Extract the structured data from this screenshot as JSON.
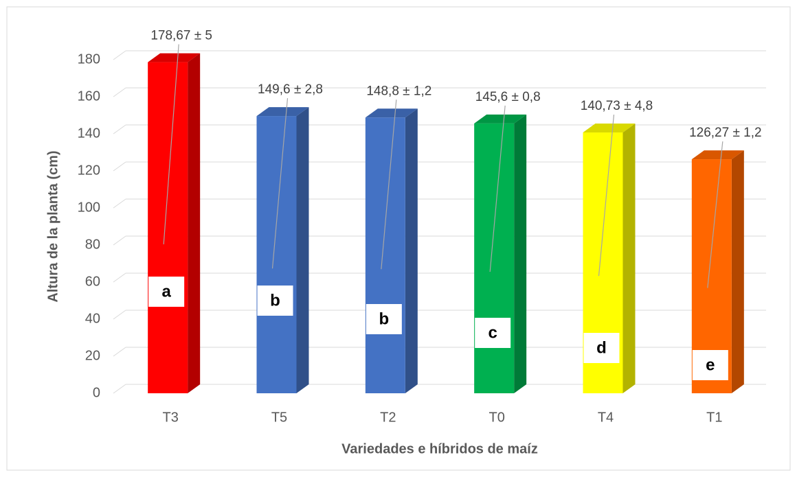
{
  "chart_data": {
    "type": "bar3d",
    "x_label": "Variedades e híbridos de maíz",
    "y_label": "Altura de la planta (cm)",
    "categories": [
      "T3",
      "T5",
      "T2",
      "T0",
      "T4",
      "T1"
    ],
    "values": [
      178.67,
      149.6,
      148.8,
      145.6,
      140.73,
      126.27
    ],
    "value_labels": [
      "178,67 ± 5",
      "149,6 ± 2,8",
      "148,8  ± 1,2",
      "145,6 ± 0,8",
      "140,73 ± 4,8",
      "126,27 ± 1,2"
    ],
    "group_letters": [
      "a",
      "b",
      "b",
      "c",
      "d",
      "e"
    ],
    "colors": [
      "#ff0000",
      "#4472c4",
      "#4472c4",
      "#00b050",
      "#ffff00",
      "#ff6600"
    ],
    "ylim": [
      0,
      190
    ],
    "yticks": [
      0,
      20,
      40,
      60,
      80,
      100,
      120,
      140,
      160,
      180
    ],
    "grid": true
  }
}
